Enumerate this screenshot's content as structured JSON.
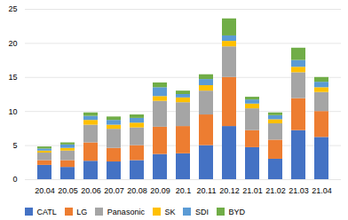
{
  "chart_data": {
    "type": "bar",
    "stacked": true,
    "categories": [
      "20.04",
      "20.05",
      "20.06",
      "20.07",
      "20.08",
      "20.09",
      "20.1",
      "20.11",
      "20.12",
      "21.01",
      "21.02",
      "21.03",
      "21.04"
    ],
    "series": [
      {
        "name": "CATL",
        "color": "#4472C4",
        "values": [
          2.1,
          1.8,
          2.7,
          2.6,
          2.8,
          3.7,
          3.8,
          5.0,
          7.8,
          4.7,
          3.0,
          7.2,
          6.2
        ]
      },
      {
        "name": "LG",
        "color": "#ED7D31",
        "values": [
          0.7,
          1.0,
          2.7,
          2.0,
          2.2,
          4.0,
          4.0,
          4.5,
          7.2,
          2.5,
          2.8,
          4.7,
          3.8
        ]
      },
      {
        "name": "Panasonic",
        "color": "#A5A5A5",
        "values": [
          1.1,
          1.4,
          2.6,
          2.8,
          2.6,
          3.8,
          3.5,
          3.5,
          4.5,
          3.2,
          2.4,
          3.8,
          2.8
        ]
      },
      {
        "name": "SK",
        "color": "#FFC000",
        "values": [
          0.3,
          0.4,
          0.7,
          0.6,
          0.7,
          0.7,
          0.7,
          0.8,
          0.8,
          0.7,
          0.6,
          0.8,
          0.7
        ]
      },
      {
        "name": "SDI",
        "color": "#5B9BD5",
        "values": [
          0.3,
          0.5,
          0.6,
          0.7,
          0.7,
          1.3,
          0.5,
          0.9,
          0.8,
          0.6,
          0.6,
          1.0,
          0.8
        ]
      },
      {
        "name": "BYD",
        "color": "#70AD47",
        "values": [
          0.3,
          0.3,
          0.5,
          0.5,
          0.5,
          0.7,
          0.5,
          0.7,
          2.5,
          0.4,
          0.4,
          1.8,
          0.7
        ]
      }
    ],
    "ylim": [
      0,
      25
    ],
    "yticks": [
      0,
      5,
      10,
      15,
      20,
      25
    ],
    "grid": true,
    "legend": "bottom"
  }
}
